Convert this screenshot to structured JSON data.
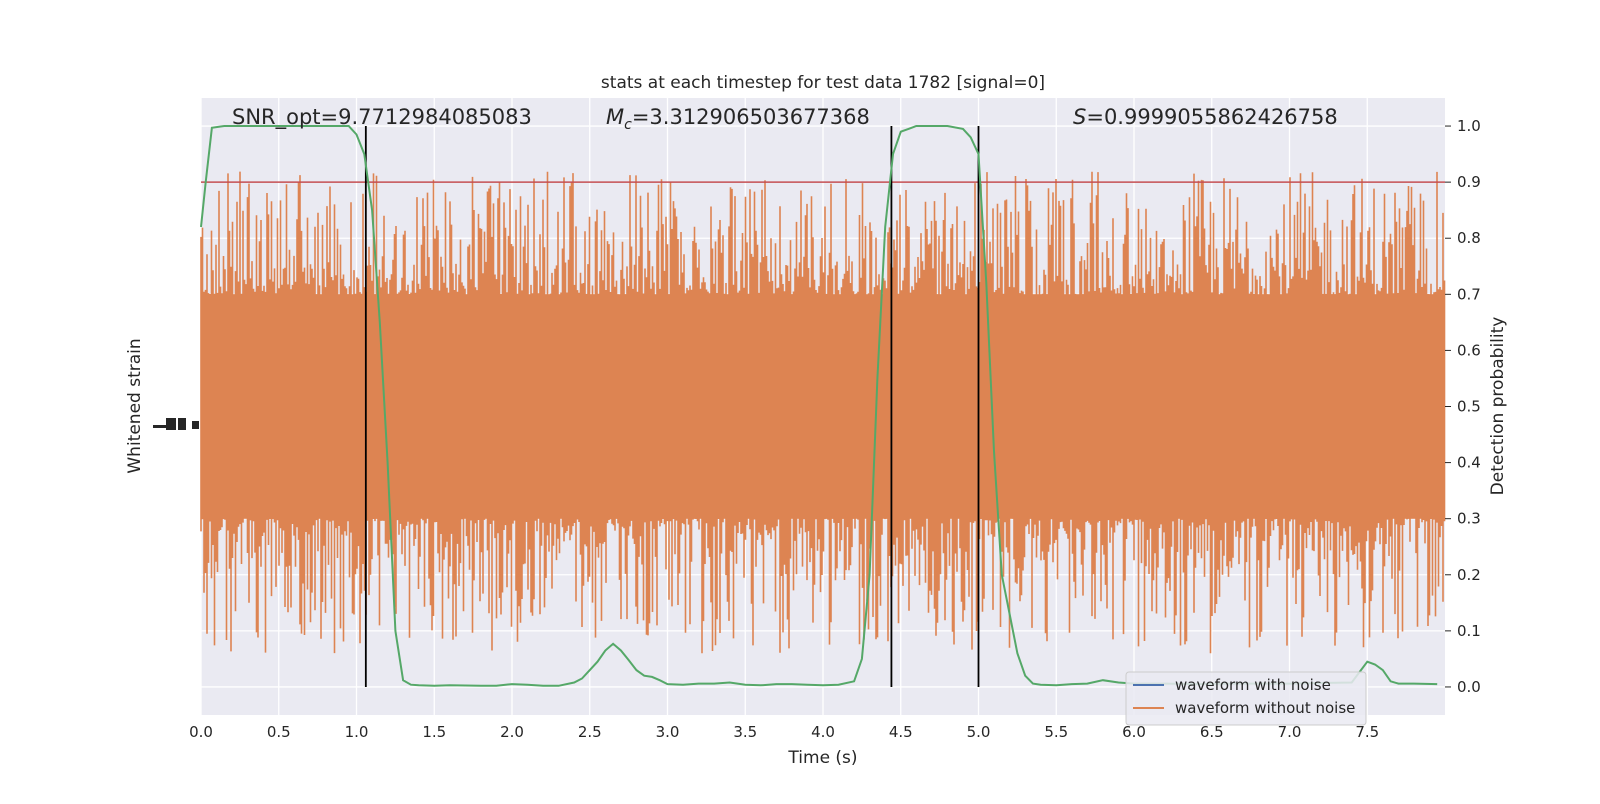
{
  "chart_data": {
    "type": "line",
    "title": "stats at each timestep for test data 1782 [signal=0]",
    "xlabel": "Time (s)",
    "ylabel_left": "Whitened strain",
    "ylabel_right": "Detection probability",
    "xlim": [
      0.0,
      8.0
    ],
    "ylim_right": [
      -0.05,
      1.05
    ],
    "grid": true,
    "legend_placement": "lower right",
    "x_ticks": [
      "0.0",
      "0.5",
      "1.0",
      "1.5",
      "2.0",
      "2.5",
      "3.0",
      "3.5",
      "4.0",
      "4.5",
      "5.0",
      "5.5",
      "6.0",
      "6.5",
      "7.0",
      "7.5"
    ],
    "y_ticks_right": [
      "0.0",
      "0.1",
      "0.2",
      "0.3",
      "0.4",
      "0.5",
      "0.6",
      "0.7",
      "0.8",
      "0.9",
      "1.0"
    ],
    "annotations": {
      "snr": "SNR_opt=9.7712984085083",
      "mc_symbol": "M",
      "mc_sub": "c",
      "mc_value": "=3.312906503677368",
      "s_symbol": "S",
      "s_value": "=0.9999055862426758"
    },
    "threshold": 0.9,
    "vlines_x": [
      1.06,
      4.44,
      5.0
    ],
    "series": [
      {
        "name": "waveform with noise",
        "color": "#4c72b0",
        "kind": "line"
      },
      {
        "name": "waveform without noise",
        "color": "#dd8452",
        "kind": "noise_band"
      },
      {
        "color": "#55a868",
        "kind": "line",
        "x": [
          0.0,
          0.03,
          0.07,
          0.15,
          0.25,
          0.4,
          0.6,
          0.8,
          0.95,
          1.0,
          1.05,
          1.1,
          1.15,
          1.2,
          1.25,
          1.3,
          1.35,
          1.4,
          1.5,
          1.6,
          1.8,
          1.9,
          2.0,
          2.1,
          2.2,
          2.3,
          2.4,
          2.45,
          2.5,
          2.55,
          2.6,
          2.65,
          2.7,
          2.75,
          2.8,
          2.85,
          2.9,
          2.95,
          3.0,
          3.1,
          3.2,
          3.3,
          3.4,
          3.5,
          3.6,
          3.7,
          3.8,
          3.9,
          4.0,
          4.1,
          4.2,
          4.25,
          4.3,
          4.35,
          4.4,
          4.45,
          4.5,
          4.55,
          4.6,
          4.65,
          4.7,
          4.8,
          4.9,
          4.95,
          5.0,
          5.05,
          5.1,
          5.15,
          5.2,
          5.25,
          5.3,
          5.35,
          5.4,
          5.5,
          5.6,
          5.7,
          5.8,
          5.9,
          6.0,
          6.2,
          6.4,
          6.6,
          6.8,
          7.0,
          7.2,
          7.4,
          7.5,
          7.55,
          7.6,
          7.65,
          7.7,
          7.8,
          7.95
        ],
        "y": [
          0.82,
          0.9,
          0.997,
          1.0,
          1.0,
          1.0,
          1.0,
          1.0,
          1.0,
          0.985,
          0.95,
          0.85,
          0.65,
          0.4,
          0.1,
          0.012,
          0.004,
          0.003,
          0.002,
          0.003,
          0.002,
          0.002,
          0.005,
          0.004,
          0.002,
          0.002,
          0.008,
          0.015,
          0.03,
          0.045,
          0.065,
          0.077,
          0.065,
          0.048,
          0.03,
          0.02,
          0.018,
          0.012,
          0.005,
          0.004,
          0.006,
          0.006,
          0.008,
          0.004,
          0.003,
          0.005,
          0.005,
          0.004,
          0.003,
          0.004,
          0.01,
          0.05,
          0.2,
          0.55,
          0.82,
          0.95,
          0.99,
          0.995,
          1.0,
          1.0,
          1.0,
          1.0,
          0.995,
          0.98,
          0.95,
          0.72,
          0.42,
          0.2,
          0.13,
          0.06,
          0.02,
          0.006,
          0.004,
          0.003,
          0.005,
          0.006,
          0.012,
          0.008,
          0.006,
          0.006,
          0.005,
          0.006,
          0.006,
          0.006,
          0.007,
          0.008,
          0.045,
          0.04,
          0.03,
          0.01,
          0.006,
          0.006,
          0.005
        ]
      }
    ]
  }
}
